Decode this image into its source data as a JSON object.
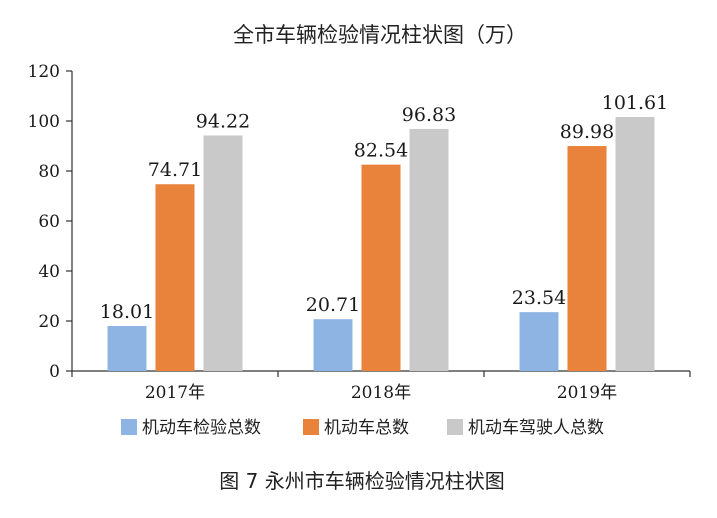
{
  "figure_caption": "图 7   永州市车辆检验情况柱状图",
  "colors": {
    "series": [
      "#8db4e2",
      "#e9823a",
      "#c9c9c9"
    ],
    "axis": "#333333"
  },
  "chart_data": {
    "type": "bar",
    "title": "全市车辆检验情况柱状图（万）",
    "xlabel": "",
    "ylabel": "",
    "categories": [
      "2017年",
      "2018年",
      "2019年"
    ],
    "ylim": [
      0,
      120
    ],
    "yticks": [
      0,
      20,
      40,
      60,
      80,
      100,
      120
    ],
    "grid": false,
    "legend_position": "bottom",
    "series": [
      {
        "name": "机动车检验总数",
        "values": [
          18.01,
          20.71,
          23.54
        ],
        "labels": [
          "18.01",
          "20.71",
          "23.54"
        ]
      },
      {
        "name": "机动车总数",
        "values": [
          74.71,
          82.54,
          89.98
        ],
        "labels": [
          "74.71",
          "82.54",
          "89.98"
        ]
      },
      {
        "name": "机动车驾驶人总数",
        "values": [
          94.22,
          96.83,
          101.61
        ],
        "labels": [
          "94.22",
          "96.83",
          "101.61"
        ]
      }
    ]
  }
}
